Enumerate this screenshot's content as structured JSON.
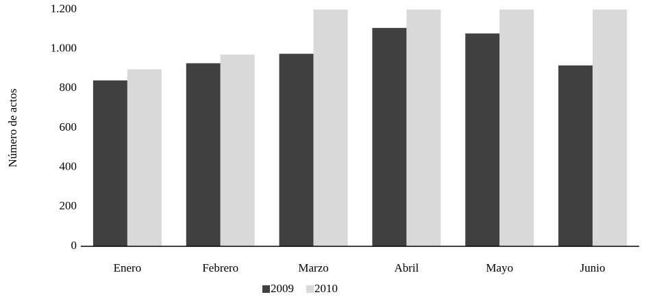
{
  "chart_data": {
    "type": "bar",
    "y_label": "Número de actos",
    "categories": [
      "Enero",
      "Febrero",
      "Marzo",
      "Abril",
      "Mayo",
      "Junio"
    ],
    "series": [
      {
        "name": "2009",
        "color": "#404040",
        "values": [
          841,
          928,
          976,
          1107,
          1079,
          917
        ]
      },
      {
        "name": "2010",
        "color": "#d9d9d9",
        "values": [
          897,
          972,
          1200,
          1200,
          1200,
          1200
        ]
      }
    ],
    "ylim": [
      0,
      1200
    ],
    "yticks": [
      0,
      200,
      400,
      600,
      800,
      {
        "value": 1000,
        "label": "1.000"
      },
      {
        "value": 1200,
        "label": "1.200"
      }
    ],
    "grid": false,
    "legend": "bottom"
  }
}
